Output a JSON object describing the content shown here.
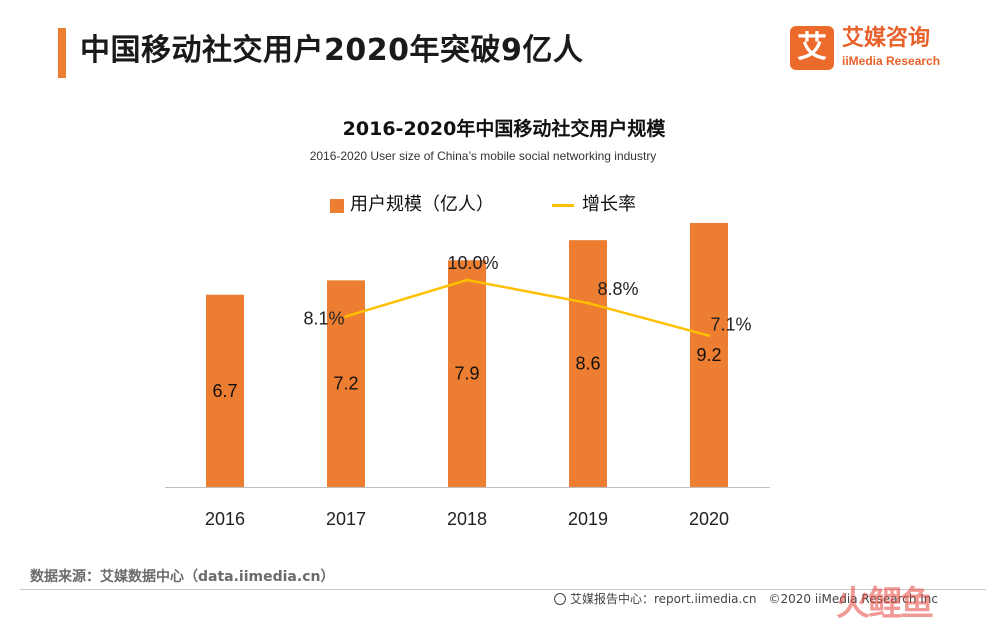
{
  "header": {
    "title": "中国移动社交用户2020年突破9亿人",
    "accent_color": "#ed7d31"
  },
  "logo": {
    "mark": "艾",
    "name": "艾媒咨询",
    "sub": "iiMedia Research"
  },
  "chart_data": {
    "type": "bar",
    "title": "2016-2020年中国移动社交用户规模",
    "subtitle": "2016-2020 User size of China’s mobile social networking industry",
    "categories": [
      "2016",
      "2017",
      "2018",
      "2019",
      "2020"
    ],
    "series": [
      {
        "name": "用户规模（亿人）",
        "type": "bar",
        "color": "#ed7d31",
        "values": [
          6.7,
          7.2,
          7.9,
          8.6,
          9.2
        ],
        "labels": [
          "6.7",
          "7.2",
          "7.9",
          "8.6",
          "9.2"
        ]
      },
      {
        "name": "增长率",
        "type": "line",
        "color": "#ffc000",
        "values": [
          null,
          8.1,
          10.0,
          8.8,
          7.1
        ],
        "labels": [
          "",
          "8.1%",
          "10.0%",
          "8.8%",
          "7.1%"
        ]
      }
    ],
    "legend_position": "top",
    "grid": false
  },
  "footer": {
    "source": "数据来源：艾媒数据中心（data.iimedia.cn）",
    "report": "艾媒报告中心：report.iimedia.cn　©2020  iiMedia Research Inc",
    "watermark": "火鲤鱼"
  }
}
